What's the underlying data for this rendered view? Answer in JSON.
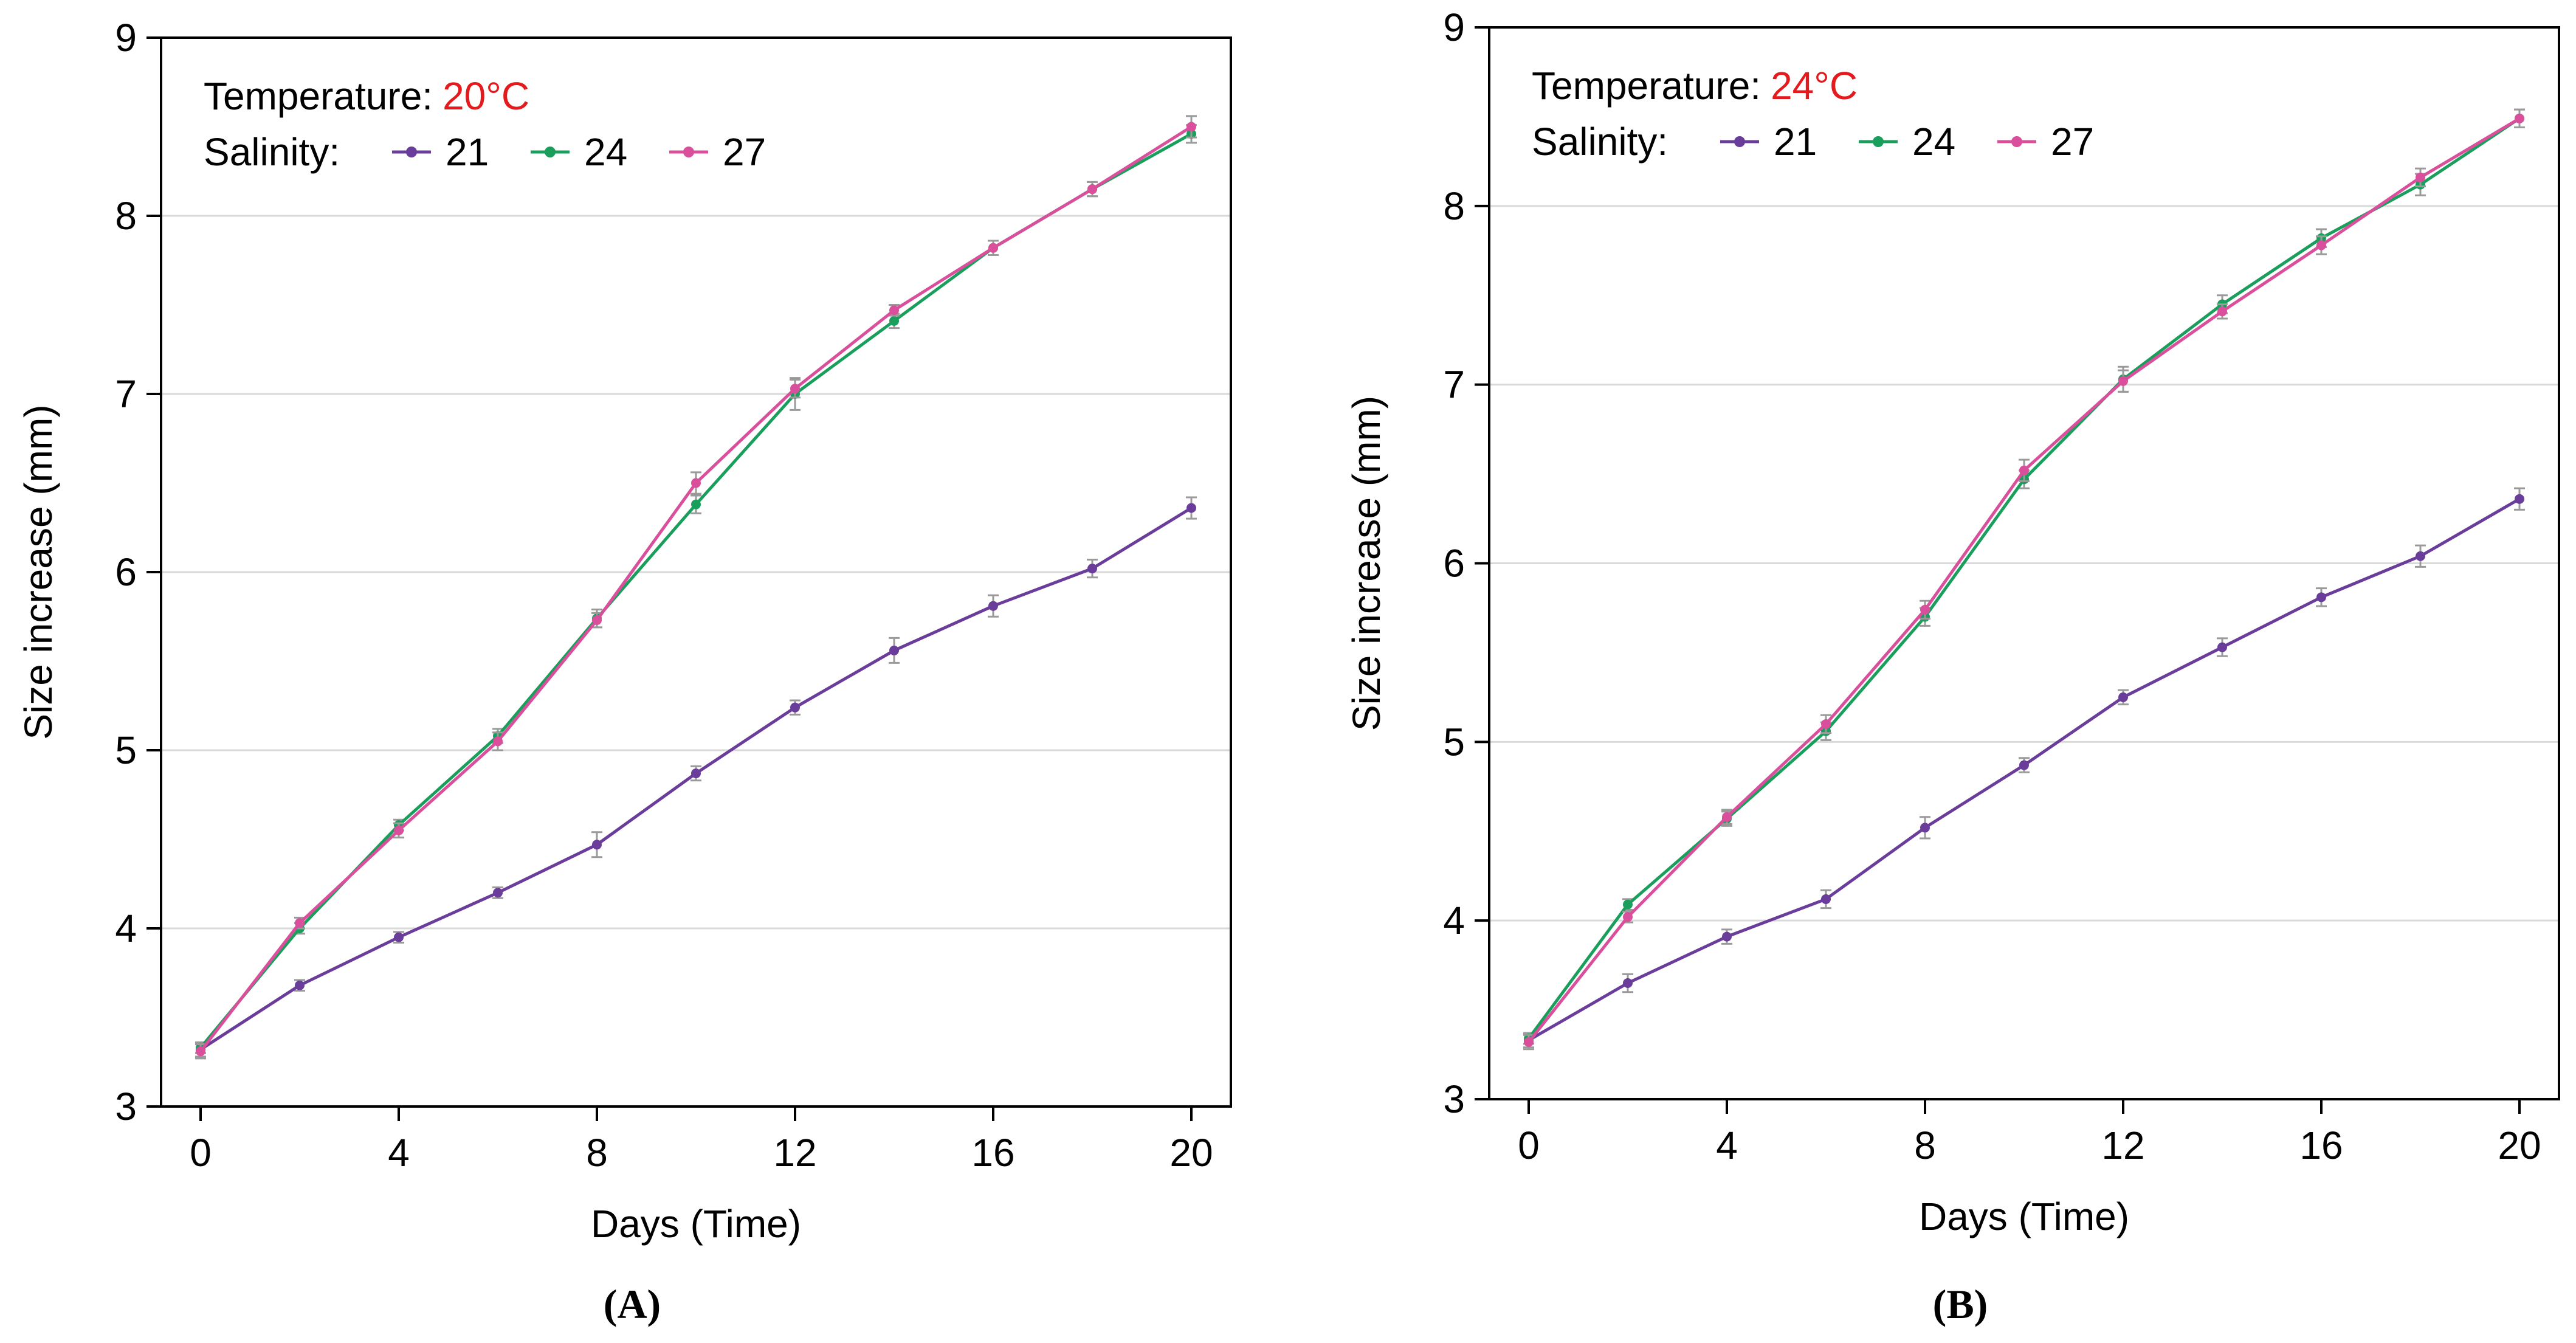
{
  "colors": {
    "salinity_21": "#6a3d9a",
    "salinity_24": "#1a9e5c",
    "salinity_27": "#d94f9c",
    "highlight": "#e41a1c",
    "errorbar": "#9a9a9a",
    "grid": "#d9d9d9",
    "axis": "#000000"
  },
  "chart_data": [
    {
      "type": "line",
      "panel_label": "(A)",
      "temperature_label": "Temperature:",
      "temperature_value": "20°C",
      "legend_title": "Salinity:",
      "legend_placement": "top-left",
      "xlabel": "Days (Time)",
      "ylabel": "Size increase (mm)",
      "xlim": [
        0,
        20
      ],
      "ylim": [
        3,
        9
      ],
      "xticks": [
        0,
        4,
        8,
        12,
        16,
        20
      ],
      "yticks": [
        3,
        4,
        5,
        6,
        7,
        8,
        9
      ],
      "grid": "horizontal",
      "x": [
        0,
        2,
        4,
        6,
        8,
        10,
        12,
        14,
        16,
        18,
        20
      ],
      "series": [
        {
          "name": "21",
          "color_key": "salinity_21",
          "values": [
            3.32,
            3.68,
            3.95,
            4.2,
            4.47,
            4.87,
            5.24,
            5.56,
            5.81,
            6.02,
            6.36
          ],
          "errors": [
            0.04,
            0.03,
            0.03,
            0.03,
            0.07,
            0.04,
            0.04,
            0.07,
            0.06,
            0.05,
            0.06
          ]
        },
        {
          "name": "24",
          "color_key": "salinity_24",
          "values": [
            3.33,
            4.0,
            4.58,
            5.08,
            5.74,
            6.38,
            7.0,
            7.41,
            7.82,
            8.15,
            8.46
          ],
          "errors": [
            0.03,
            0.03,
            0.03,
            0.04,
            0.05,
            0.05,
            0.09,
            0.04,
            0.04,
            0.04,
            0.05
          ]
        },
        {
          "name": "27",
          "color_key": "salinity_27",
          "values": [
            3.31,
            4.03,
            4.55,
            5.05,
            5.73,
            6.5,
            7.03,
            7.47,
            7.82,
            8.15,
            8.5
          ],
          "errors": [
            0.04,
            0.03,
            0.04,
            0.05,
            0.04,
            0.06,
            0.05,
            0.03,
            0.04,
            0.04,
            0.06
          ]
        }
      ]
    },
    {
      "type": "line",
      "panel_label": "(B)",
      "temperature_label": "Temperature:",
      "temperature_value": "24°C",
      "legend_title": "Salinity:",
      "legend_placement": "top-left",
      "xlabel": "Days (Time)",
      "ylabel": "Size increase (mm)",
      "xlim": [
        0,
        20
      ],
      "ylim": [
        3,
        9
      ],
      "xticks": [
        0,
        4,
        8,
        12,
        16,
        20
      ],
      "yticks": [
        3,
        4,
        5,
        6,
        7,
        8,
        9
      ],
      "grid": "horizontal",
      "x": [
        0,
        2,
        4,
        6,
        8,
        10,
        12,
        14,
        16,
        18,
        20
      ],
      "series": [
        {
          "name": "21",
          "color_key": "salinity_21",
          "values": [
            3.33,
            3.65,
            3.91,
            4.12,
            4.52,
            4.87,
            5.25,
            5.53,
            5.81,
            6.04,
            6.36
          ],
          "errors": [
            0.04,
            0.05,
            0.04,
            0.05,
            0.06,
            0.04,
            0.04,
            0.05,
            0.05,
            0.06,
            0.06
          ]
        },
        {
          "name": "24",
          "color_key": "salinity_24",
          "values": [
            3.34,
            4.09,
            4.57,
            5.06,
            5.7,
            6.47,
            7.03,
            7.45,
            7.82,
            8.12,
            8.49
          ],
          "errors": [
            0.03,
            0.03,
            0.04,
            0.05,
            0.05,
            0.05,
            0.07,
            0.05,
            0.05,
            0.06,
            0.05
          ]
        },
        {
          "name": "27",
          "color_key": "salinity_27",
          "values": [
            3.32,
            4.02,
            4.58,
            5.1,
            5.74,
            6.52,
            7.02,
            7.41,
            7.78,
            8.16,
            8.49
          ],
          "errors": [
            0.04,
            0.03,
            0.04,
            0.05,
            0.05,
            0.06,
            0.06,
            0.04,
            0.05,
            0.05,
            0.05
          ]
        }
      ]
    }
  ]
}
